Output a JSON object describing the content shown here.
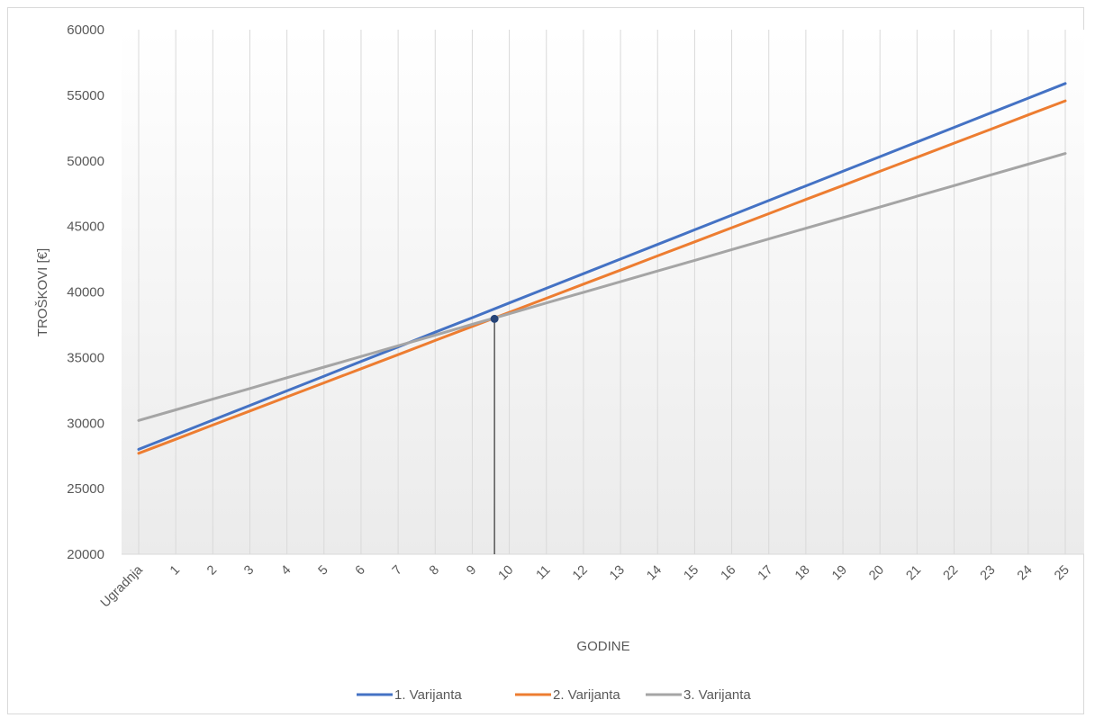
{
  "chart_data": {
    "type": "line",
    "title": "",
    "xlabel": "GODINE",
    "ylabel": "TROŠKOVI [€]",
    "ylim": [
      20000,
      60000
    ],
    "yticks": [
      20000,
      25000,
      30000,
      35000,
      40000,
      45000,
      50000,
      55000,
      60000
    ],
    "categories": [
      "Ugradnja",
      "1",
      "2",
      "3",
      "4",
      "5",
      "6",
      "7",
      "8",
      "9",
      "10",
      "11",
      "12",
      "13",
      "14",
      "15",
      "16",
      "17",
      "18",
      "19",
      "20",
      "21",
      "22",
      "23",
      "24",
      "25"
    ],
    "grid": "vertical",
    "legend_position": "bottom",
    "series": [
      {
        "name": "1. Varijanta",
        "color": "#4472c4",
        "values": [
          28000,
          29120,
          30230,
          31350,
          32460,
          33580,
          34700,
          35810,
          36930,
          38040,
          39160,
          40280,
          41390,
          42510,
          43620,
          44740,
          45860,
          46970,
          48090,
          49200,
          50320,
          51440,
          52550,
          53670,
          54780,
          55900
        ]
      },
      {
        "name": "2. Varijanta",
        "color": "#ed7d31",
        "values": [
          27700,
          28770,
          29850,
          30920,
          32000,
          33070,
          34150,
          35220,
          36300,
          37370,
          38450,
          39520,
          40600,
          41670,
          42750,
          43820,
          44900,
          45970,
          47050,
          48120,
          49200,
          50270,
          51350,
          52420,
          53500,
          54570
        ]
      },
      {
        "name": "3. Varijanta",
        "color": "#a5a5a5",
        "values": [
          30200,
          31010,
          31830,
          32640,
          33460,
          34270,
          35080,
          35900,
          36710,
          37530,
          38340,
          39160,
          39970,
          40780,
          41600,
          42410,
          43230,
          44040,
          44860,
          45670,
          46480,
          47300,
          48110,
          48930,
          49740,
          50560
        ]
      }
    ],
    "annotation": {
      "description": "marker with drop line",
      "x_index": 9.6,
      "y": 37950,
      "color": "#264478"
    }
  }
}
